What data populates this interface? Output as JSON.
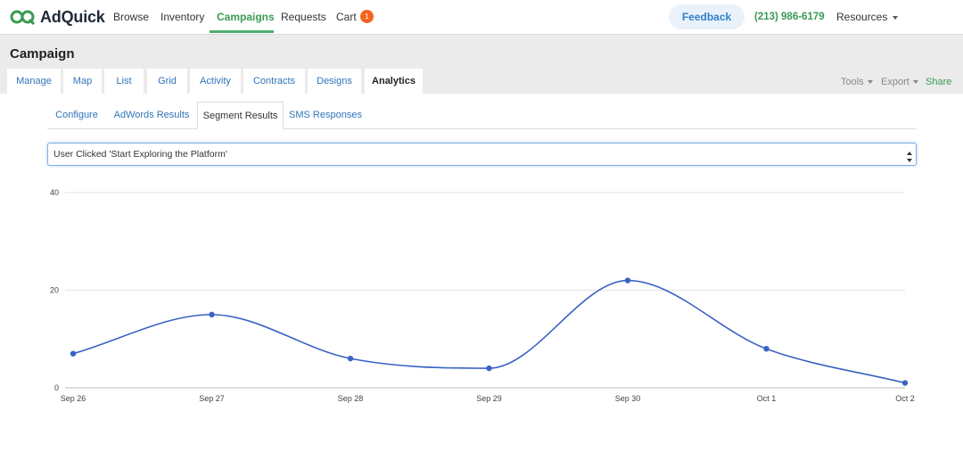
{
  "app": {
    "brand": "AdQuick",
    "nav": [
      {
        "label": "Browse"
      },
      {
        "label": "Inventory"
      },
      {
        "label": "Campaigns"
      },
      {
        "label": "Requests"
      },
      {
        "label": "Cart"
      }
    ],
    "active_nav": "Campaigns",
    "cart_count": "1",
    "feedback_label": "Feedback",
    "phone": "(213) 986-6179",
    "resources_label": "Resources",
    "colors": {
      "brand_green": "#3a9a52",
      "link_blue": "#2f74b8",
      "badge_orange": "#f26522",
      "series_blue": "#3b63c4"
    }
  },
  "campaign": {
    "title": "Campaign",
    "tabs": [
      "Manage",
      "Map",
      "List",
      "Grid",
      "Activity",
      "Contracts",
      "Designs",
      "Analytics"
    ],
    "active_tab": "Analytics",
    "tools_label": "Tools",
    "export_label": "Export",
    "share_label": "Share"
  },
  "analytics": {
    "subtabs": [
      "Configure",
      "AdWords Results",
      "Segment Results",
      "SMS Responses"
    ],
    "active_subtab": "Segment Results",
    "segment_select": "User Clicked 'Start Exploring the Platform'"
  },
  "chart_data": {
    "type": "line",
    "categories": [
      "Sep 26",
      "Sep 27",
      "Sep 28",
      "Sep 29",
      "Sep 30",
      "Oct 1",
      "Oct 2"
    ],
    "values": [
      7,
      15,
      6,
      4,
      22,
      8,
      1
    ],
    "y_ticks": [
      0,
      20,
      40
    ],
    "ylim": [
      0,
      40
    ],
    "grid": true,
    "smooth": true
  }
}
